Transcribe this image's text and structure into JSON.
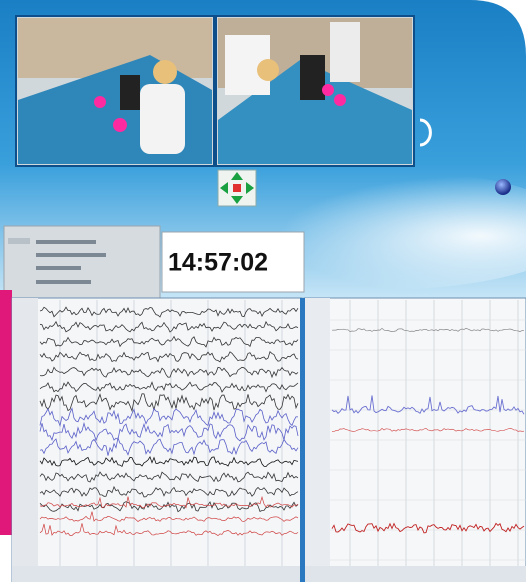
{
  "clock": {
    "time": "14:57:02"
  }
}
